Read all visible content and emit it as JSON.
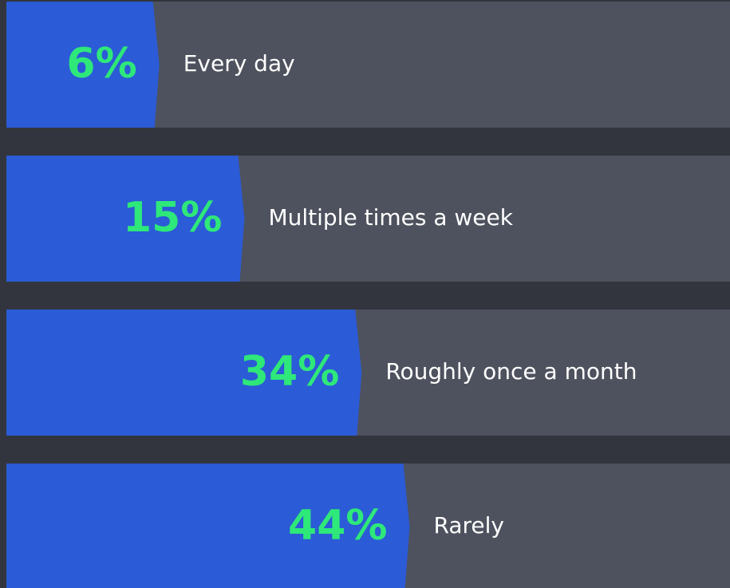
{
  "chart_data": {
    "type": "bar",
    "orientation": "horizontal",
    "categories": [
      "Every day",
      "Multiple times a week",
      "Roughly once a month",
      "Rarely"
    ],
    "values": [
      6,
      15,
      34,
      44
    ],
    "value_labels": [
      "6%",
      "15%",
      "34%",
      "44%"
    ],
    "color": "#2b5bd6",
    "label_color": "#2ee87a"
  }
}
